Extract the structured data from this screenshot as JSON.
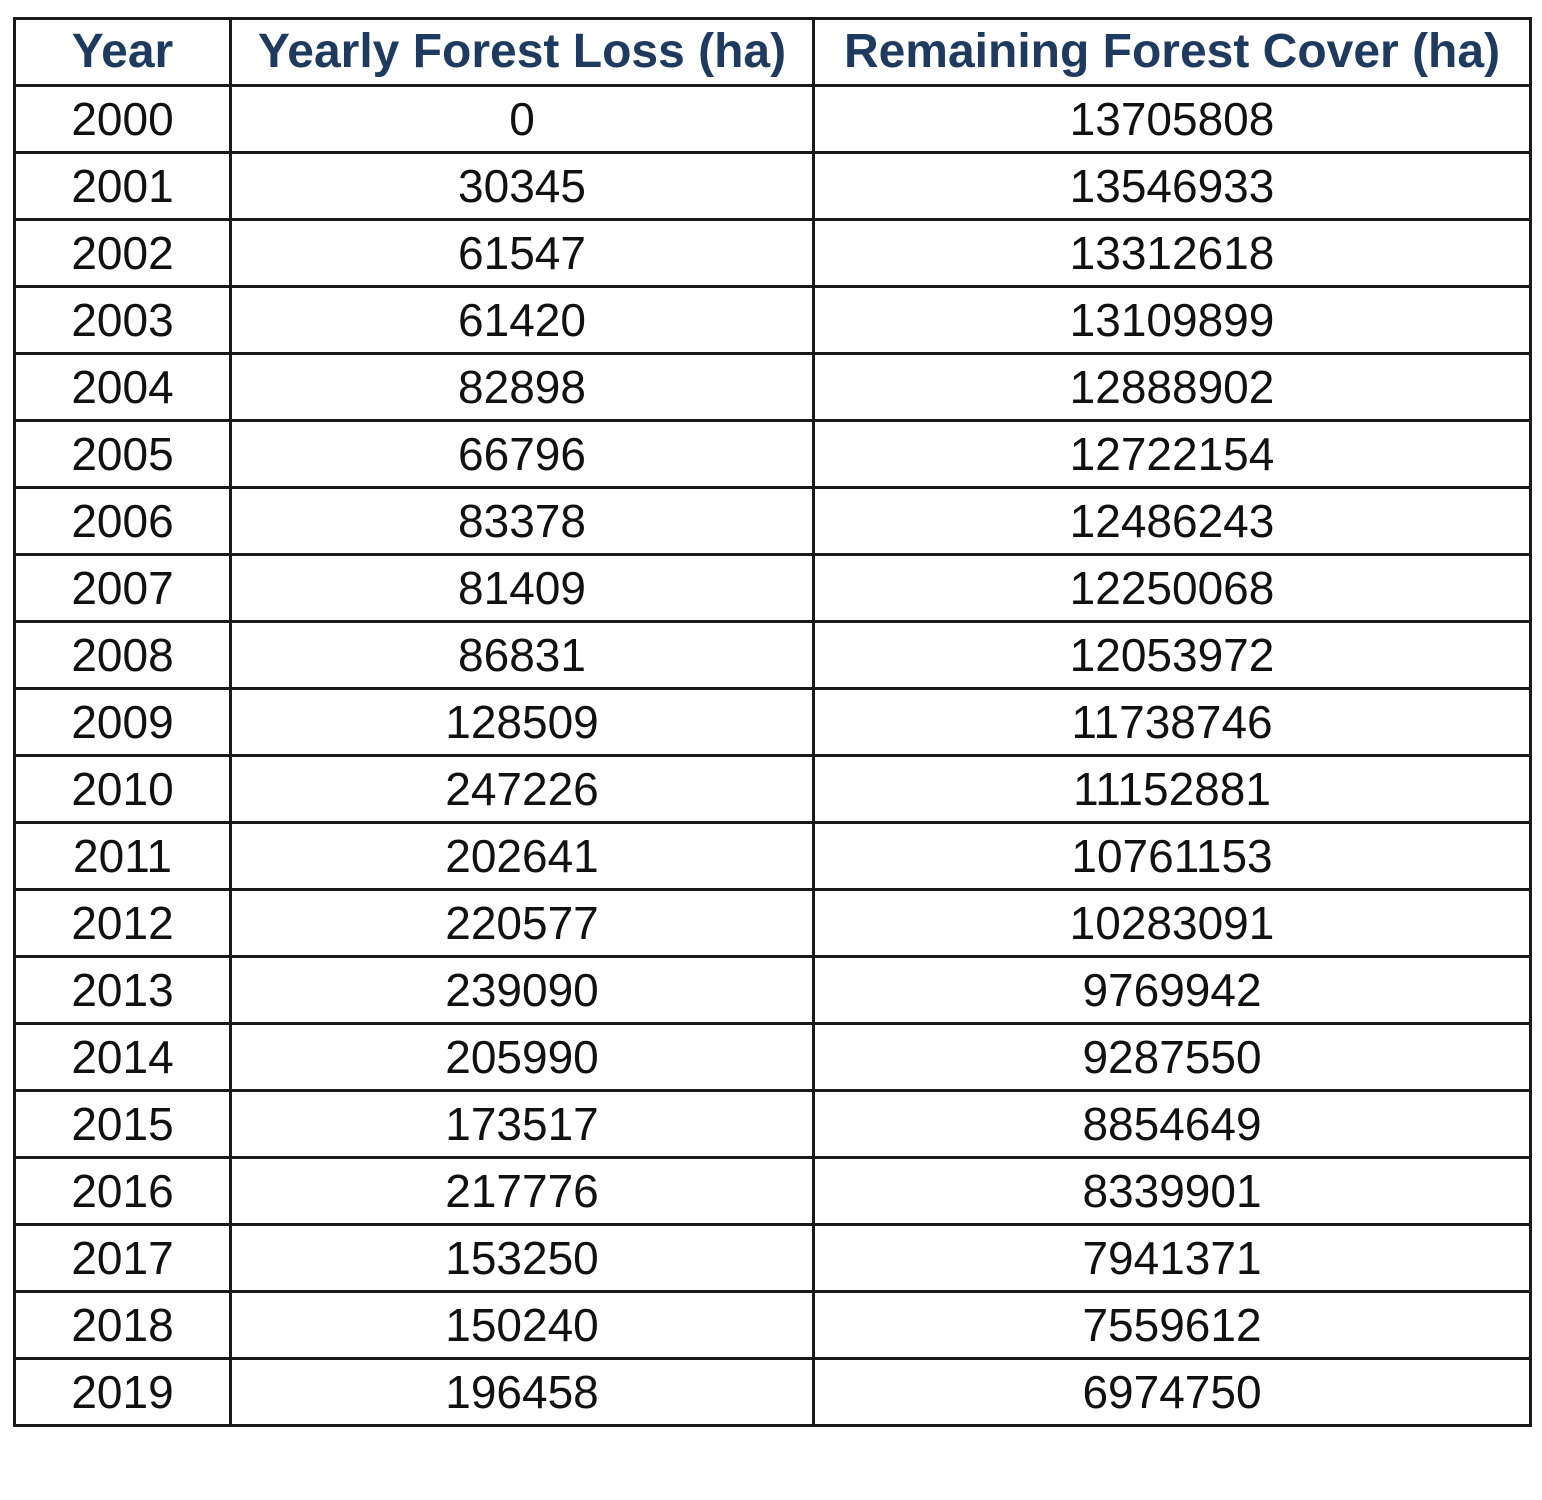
{
  "chart_data": {
    "type": "table",
    "columns": [
      "Year",
      "Yearly Forest Loss (ha)",
      "Remaining Forest Cover (ha)"
    ],
    "rows": [
      [
        "2000",
        "0",
        "13705808"
      ],
      [
        "2001",
        "30345",
        "13546933"
      ],
      [
        "2002",
        "61547",
        "13312618"
      ],
      [
        "2003",
        "61420",
        "13109899"
      ],
      [
        "2004",
        "82898",
        "12888902"
      ],
      [
        "2005",
        "66796",
        "12722154"
      ],
      [
        "2006",
        "83378",
        "12486243"
      ],
      [
        "2007",
        "81409",
        "12250068"
      ],
      [
        "2008",
        "86831",
        "12053972"
      ],
      [
        "2009",
        "128509",
        "11738746"
      ],
      [
        "2010",
        "247226",
        "11152881"
      ],
      [
        "2011",
        "202641",
        "10761153"
      ],
      [
        "2012",
        "220577",
        "10283091"
      ],
      [
        "2013",
        "239090",
        "9769942"
      ],
      [
        "2014",
        "205990",
        "9287550"
      ],
      [
        "2015",
        "173517",
        "8854649"
      ],
      [
        "2016",
        "217776",
        "8339901"
      ],
      [
        "2017",
        "153250",
        "7941371"
      ],
      [
        "2018",
        "150240",
        "7559612"
      ],
      [
        "2019",
        "196458",
        "6974750"
      ]
    ],
    "header_color": "#1f3a5f",
    "border_color": "#1a1a1a"
  }
}
